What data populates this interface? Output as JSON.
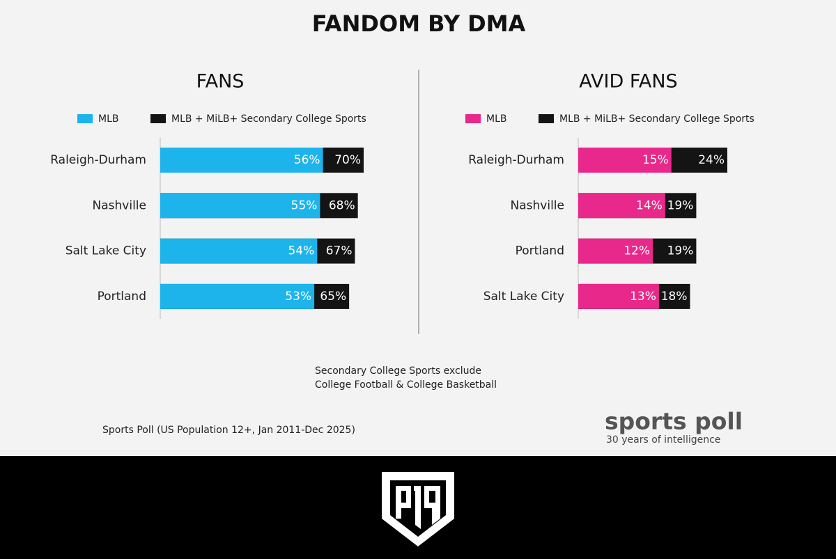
{
  "title": "FANDOM BY DMA",
  "chart_data": [
    {
      "type": "bar",
      "orientation": "horizontal",
      "title": "FANS",
      "categories": [
        "Raleigh-Durham",
        "Nashville",
        "Salt Lake City",
        "Portland"
      ],
      "series": [
        {
          "name": "MLB",
          "color": "#1db4ec",
          "values": [
            56,
            55,
            54,
            53
          ],
          "value_labels": [
            "56%",
            "55%",
            "54%",
            "53%"
          ]
        },
        {
          "name": "MLB + MiLB+ Secondary College Sports",
          "color": "#141414",
          "values": [
            70,
            68,
            67,
            65
          ],
          "value_labels": [
            "70%",
            "68%",
            "67%",
            "65%"
          ]
        }
      ]
    },
    {
      "type": "bar",
      "orientation": "horizontal",
      "title": "AVID FANS",
      "categories": [
        "Raleigh-Durham",
        "Nashville",
        "Portland",
        "Salt Lake City"
      ],
      "series": [
        {
          "name": "MLB",
          "color": "#e8288a",
          "values": [
            15,
            14,
            12,
            13
          ],
          "value_labels": [
            "15%",
            "14%",
            "12%",
            "13%"
          ]
        },
        {
          "name": "MLB + MiLB+ Secondary College Sports",
          "color": "#141414",
          "values": [
            24,
            19,
            19,
            18
          ],
          "value_labels": [
            "24%",
            "19%",
            "19%",
            "18%"
          ]
        }
      ]
    }
  ],
  "note": [
    "Secondary College Sports exclude",
    "College Football & College Basketball"
  ],
  "source": "Sports Poll (US Population 12+, Jan 2011-Dec 2025)",
  "brand": {
    "name": "sports poll",
    "tagline": "30 years of intelligence"
  }
}
